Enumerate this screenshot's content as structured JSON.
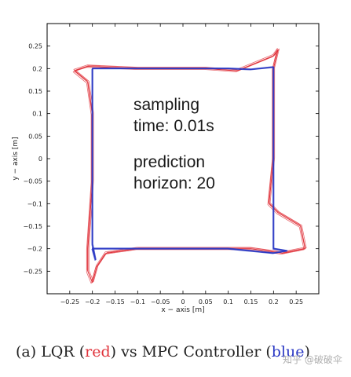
{
  "chart_data": {
    "type": "line",
    "title": "",
    "xlabel": "x − axis [m]",
    "ylabel": "y − axis [m]",
    "xlim": [
      -0.3,
      0.3
    ],
    "ylim": [
      -0.3,
      0.3
    ],
    "xticks": [
      -0.25,
      -0.2,
      -0.15,
      -0.1,
      -0.05,
      0,
      0.05,
      0.1,
      0.15,
      0.2,
      0.25
    ],
    "yticks": [
      0.25,
      0.2,
      0.15,
      0.1,
      0.05,
      0,
      -0.05,
      -0.1,
      -0.15,
      -0.2,
      -0.25
    ],
    "xtick_labels": [
      "−0.25",
      "−0.2",
      "−0.15",
      "−0.1",
      "−0.05",
      "0",
      "0.05",
      "0.1",
      "0.15",
      "0.2",
      "0.25"
    ],
    "ytick_labels": [
      "0.25",
      "0.2",
      "0.15",
      "0.1",
      "0.05",
      "0",
      "−0.05",
      "−0.1",
      "−0.15",
      "−0.2",
      "−0.25"
    ],
    "grid": false,
    "legend": "none",
    "series": [
      {
        "color": "#e0343c",
        "points": [
          [
            -0.24,
            0.195
          ],
          [
            -0.21,
            0.205
          ],
          [
            -0.1,
            0.2
          ],
          [
            0.05,
            0.2
          ],
          [
            0.12,
            0.195
          ],
          [
            0.2,
            0.228
          ],
          [
            0.21,
            0.242
          ],
          [
            0.2,
            0.2
          ],
          [
            0.2,
            0.1
          ],
          [
            0.2,
            0.0
          ],
          [
            0.19,
            -0.1
          ],
          [
            0.21,
            -0.12
          ],
          [
            0.26,
            -0.15
          ],
          [
            0.27,
            -0.2
          ],
          [
            0.22,
            -0.21
          ],
          [
            0.15,
            -0.2
          ],
          [
            0.05,
            -0.2
          ],
          [
            -0.1,
            -0.2
          ],
          [
            -0.17,
            -0.21
          ],
          [
            -0.19,
            -0.24
          ],
          [
            -0.2,
            -0.275
          ],
          [
            -0.21,
            -0.25
          ],
          [
            -0.21,
            -0.2
          ],
          [
            -0.2,
            -0.05
          ],
          [
            -0.2,
            0.1
          ],
          [
            -0.21,
            0.17
          ],
          [
            -0.24,
            0.195
          ]
        ]
      },
      {
        "color": "#2a38c4",
        "points": [
          [
            -0.2,
            0.2
          ],
          [
            -0.1,
            0.2
          ],
          [
            0.0,
            0.2
          ],
          [
            0.1,
            0.2
          ],
          [
            0.15,
            0.198
          ],
          [
            0.2,
            0.203
          ],
          [
            0.2,
            0.1
          ],
          [
            0.2,
            0.0
          ],
          [
            0.2,
            -0.1
          ],
          [
            0.2,
            -0.2
          ],
          [
            0.23,
            -0.205
          ],
          [
            0.2,
            -0.21
          ],
          [
            0.1,
            -0.2
          ],
          [
            0.0,
            -0.2
          ],
          [
            -0.1,
            -0.2
          ],
          [
            -0.2,
            -0.2
          ],
          [
            -0.193,
            -0.225
          ],
          [
            -0.2,
            -0.19
          ],
          [
            -0.2,
            -0.1
          ],
          [
            -0.2,
            0.0
          ],
          [
            -0.2,
            0.1
          ],
          [
            -0.2,
            0.2
          ]
        ]
      }
    ],
    "annotations": [
      {
        "lines": [
          "sampling",
          "time: 0.01s"
        ]
      },
      {
        "lines": [
          "prediction",
          "horizon: 20"
        ]
      }
    ]
  },
  "caption": {
    "prefix": "(a) LQR (",
    "red_word": "red",
    "middle": ") vs MPC Controller (",
    "blue_word": "blue",
    "suffix": ")"
  },
  "colors": {
    "red": "#e0343c",
    "blue": "#2a38c4"
  },
  "watermark": "知乎 @破破伞"
}
